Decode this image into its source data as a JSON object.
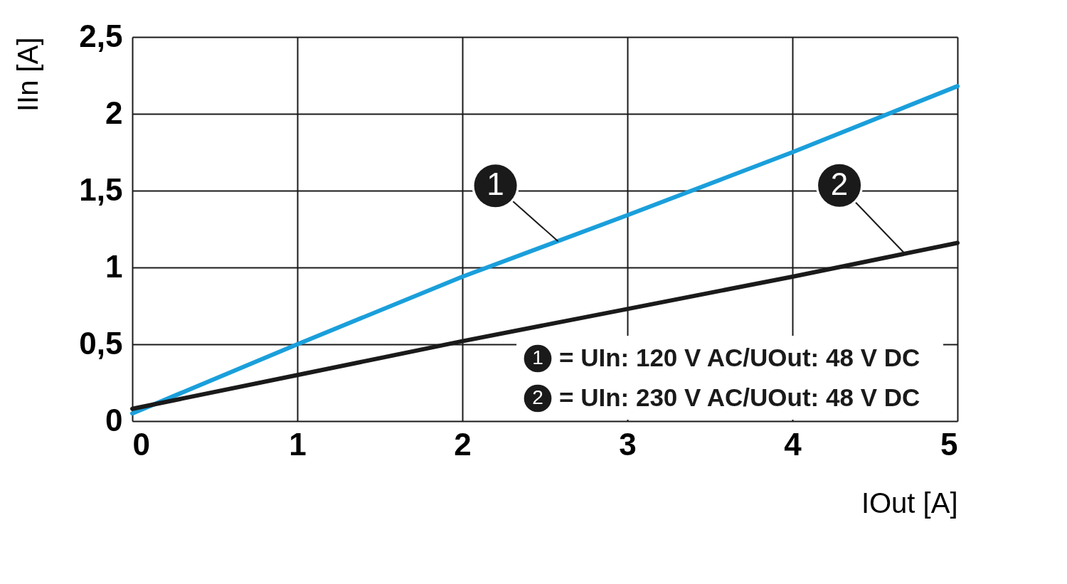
{
  "chart_data": {
    "type": "line",
    "xlabel": "IOut [A]",
    "ylabel": "IIn [A]",
    "x": [
      0,
      1,
      2,
      3,
      4,
      5
    ],
    "series": [
      {
        "color": "#1a9fdb",
        "values": [
          0.05,
          0.5,
          0.94,
          1.34,
          1.75,
          2.18
        ]
      },
      {
        "color": "#1a1a1a",
        "values": [
          0.08,
          0.3,
          0.52,
          0.73,
          0.94,
          1.16
        ]
      }
    ],
    "annotations": [
      {
        "text": "1",
        "x": 2.58,
        "y": 1.17
      },
      {
        "text": "2",
        "x": 4.69,
        "y": 1.08
      },
      "= UIn: 120 V AC/UOut: 48 V DC",
      "= UIn: 230 V AC/UOut: 48 V DC"
    ],
    "xlim": [
      0,
      5
    ],
    "xticks": [
      0,
      1,
      2,
      3,
      4,
      5
    ],
    "ylim": [
      0,
      2.5
    ],
    "yticks": [
      0,
      {
        "value": 0.5,
        "label": "0,5"
      },
      1,
      {
        "value": 1.5,
        "label": "1,5"
      },
      2,
      {
        "value": 2.5,
        "label": "2,5"
      }
    ],
    "grid": true,
    "marker": "none",
    "line_style": "solid"
  }
}
